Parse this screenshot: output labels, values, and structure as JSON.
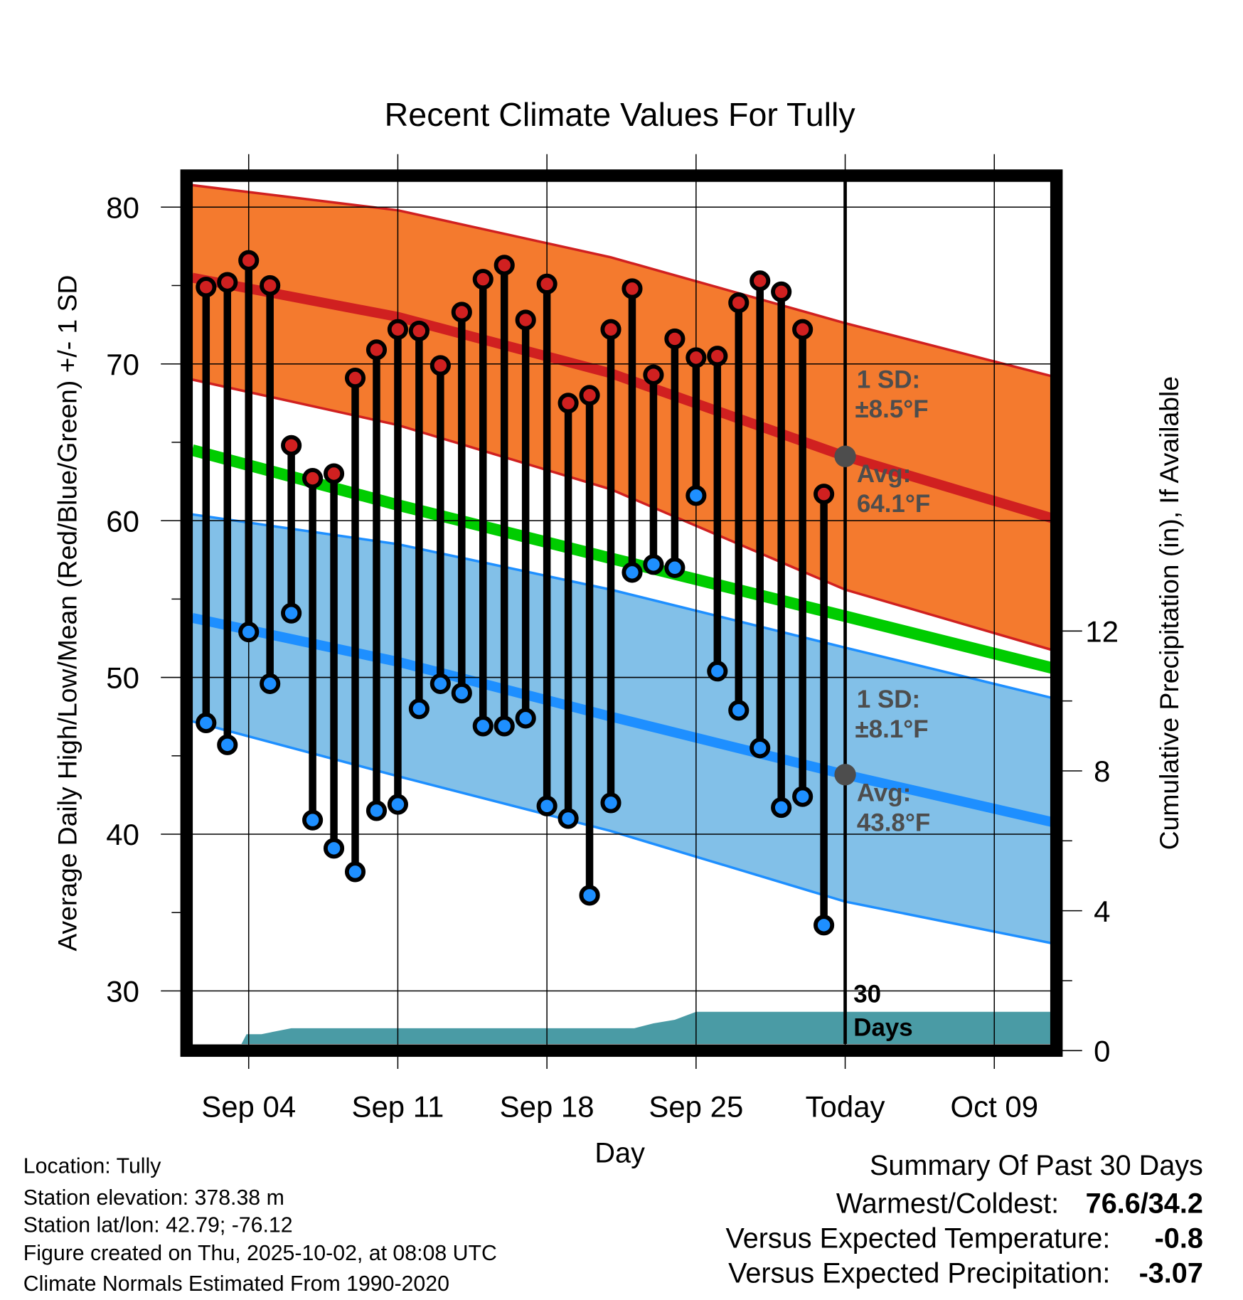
{
  "chart_data": {
    "type": "line",
    "title": "Recent Climate Values For Tully",
    "xlabel": "Day",
    "ylabel": "Average Daily High/Low/Mean (Red/Blue/Green) +/- 1 SD",
    "y2label": "Cumulative Precipitation (in), If Available",
    "x_unit": "days since Sep 01",
    "xlim": [
      0.35,
      41.6
    ],
    "ylim": [
      26.2,
      82.0
    ],
    "y2lim": [
      0,
      15
    ],
    "grid": true,
    "x_ticks": [
      {
        "day": 3,
        "label": "Sep 04"
      },
      {
        "day": 10,
        "label": "Sep 11"
      },
      {
        "day": 17,
        "label": "Sep 18"
      },
      {
        "day": 24,
        "label": "Sep 25"
      },
      {
        "day": 31,
        "label": "Today"
      },
      {
        "day": 38,
        "label": "Oct 09"
      }
    ],
    "y_ticks": [
      30,
      40,
      50,
      60,
      70,
      80
    ],
    "y2_ticks": [
      0,
      4,
      8,
      12
    ],
    "days": [
      1,
      2,
      3,
      4,
      5,
      6,
      7,
      8,
      9,
      10,
      11,
      12,
      13,
      14,
      15,
      16,
      17,
      18,
      19,
      20,
      21,
      22,
      23,
      24,
      25,
      26,
      27,
      28,
      29,
      30
    ],
    "highs": [
      74.9,
      75.2,
      76.6,
      75.0,
      64.8,
      62.7,
      63.0,
      69.1,
      70.9,
      72.2,
      72.1,
      69.9,
      73.3,
      75.4,
      76.3,
      72.8,
      75.1,
      67.5,
      68.0,
      72.2,
      74.8,
      69.3,
      71.6,
      70.4,
      70.5,
      73.9,
      75.3,
      74.6,
      72.2,
      61.7
    ],
    "lows": [
      47.1,
      45.7,
      52.9,
      49.6,
      54.1,
      40.9,
      39.1,
      37.6,
      41.5,
      41.9,
      48.0,
      49.6,
      49.0,
      46.9,
      46.9,
      47.4,
      41.8,
      41.0,
      36.1,
      42.0,
      56.7,
      57.2,
      57.0,
      61.6,
      50.4,
      47.9,
      45.5,
      41.7,
      42.4,
      34.2
    ],
    "normals": {
      "x": [
        0.35,
        10,
        20,
        31,
        41.6
      ],
      "high_avg": [
        75.5,
        73.0,
        69.4,
        64.1,
        59.8
      ],
      "high_upper": [
        81.4,
        79.8,
        76.8,
        72.6,
        68.9
      ],
      "high_lower": [
        69.0,
        66.1,
        62.0,
        55.6,
        51.4
      ],
      "mean": [
        64.5,
        61.0,
        57.6,
        53.9,
        50.3
      ],
      "low_avg": [
        53.8,
        51.0,
        47.5,
        43.8,
        40.5
      ],
      "low_upper": [
        60.4,
        58.5,
        55.6,
        51.9,
        48.4
      ],
      "low_lower": [
        47.2,
        43.7,
        40.2,
        35.7,
        32.8
      ]
    },
    "precip": {
      "x": [
        0.35,
        2.5,
        2.9,
        3.6,
        5.0,
        21.1,
        22.0,
        23.0,
        24.0,
        41.6
      ],
      "values": [
        0,
        0,
        0.47,
        0.47,
        0.64,
        0.64,
        0.78,
        0.88,
        1.11,
        1.11
      ]
    },
    "today_day": 31,
    "annotations": {
      "high_sd_line1": "1 SD:",
      "high_sd_line2": "±8.5°F",
      "high_avg_line1": "Avg:",
      "high_avg_line2": "64.1°F",
      "low_sd_line1": "1 SD:",
      "low_sd_line2": "±8.1°F",
      "low_avg_line1": "Avg:",
      "low_avg_line2": "43.8°F",
      "days_line1": "30",
      "days_line2": "Days"
    },
    "colors": {
      "high_band": "#f47a2e",
      "high_line": "#d02020",
      "mean": "#00cc00",
      "low_band": "#82c0e8",
      "low_line": "#1e8fff",
      "precip": "#4a9ba5",
      "annotation": "#4d4d4d"
    }
  },
  "footer": {
    "location": "Location: Tully",
    "elevation": "Station elevation: 378.38 m",
    "latlon": "Station lat/lon: 42.79; -76.12",
    "created": "Figure created on Thu, 2025-10-02, at 08:08 UTC",
    "normals": "Climate Normals Estimated From 1990-2020"
  },
  "summary": {
    "title": "Summary Of Past 30 Days",
    "warm_cold_label": "Warmest/Coldest:",
    "warm_cold_value": "76.6/34.2",
    "temp_label": "Versus Expected Temperature:",
    "temp_value": "-0.8",
    "temp_color": "#1e8fff",
    "precip_label": "Versus Expected Precipitation:",
    "precip_value": "-3.07",
    "precip_color": "#a0522d"
  }
}
